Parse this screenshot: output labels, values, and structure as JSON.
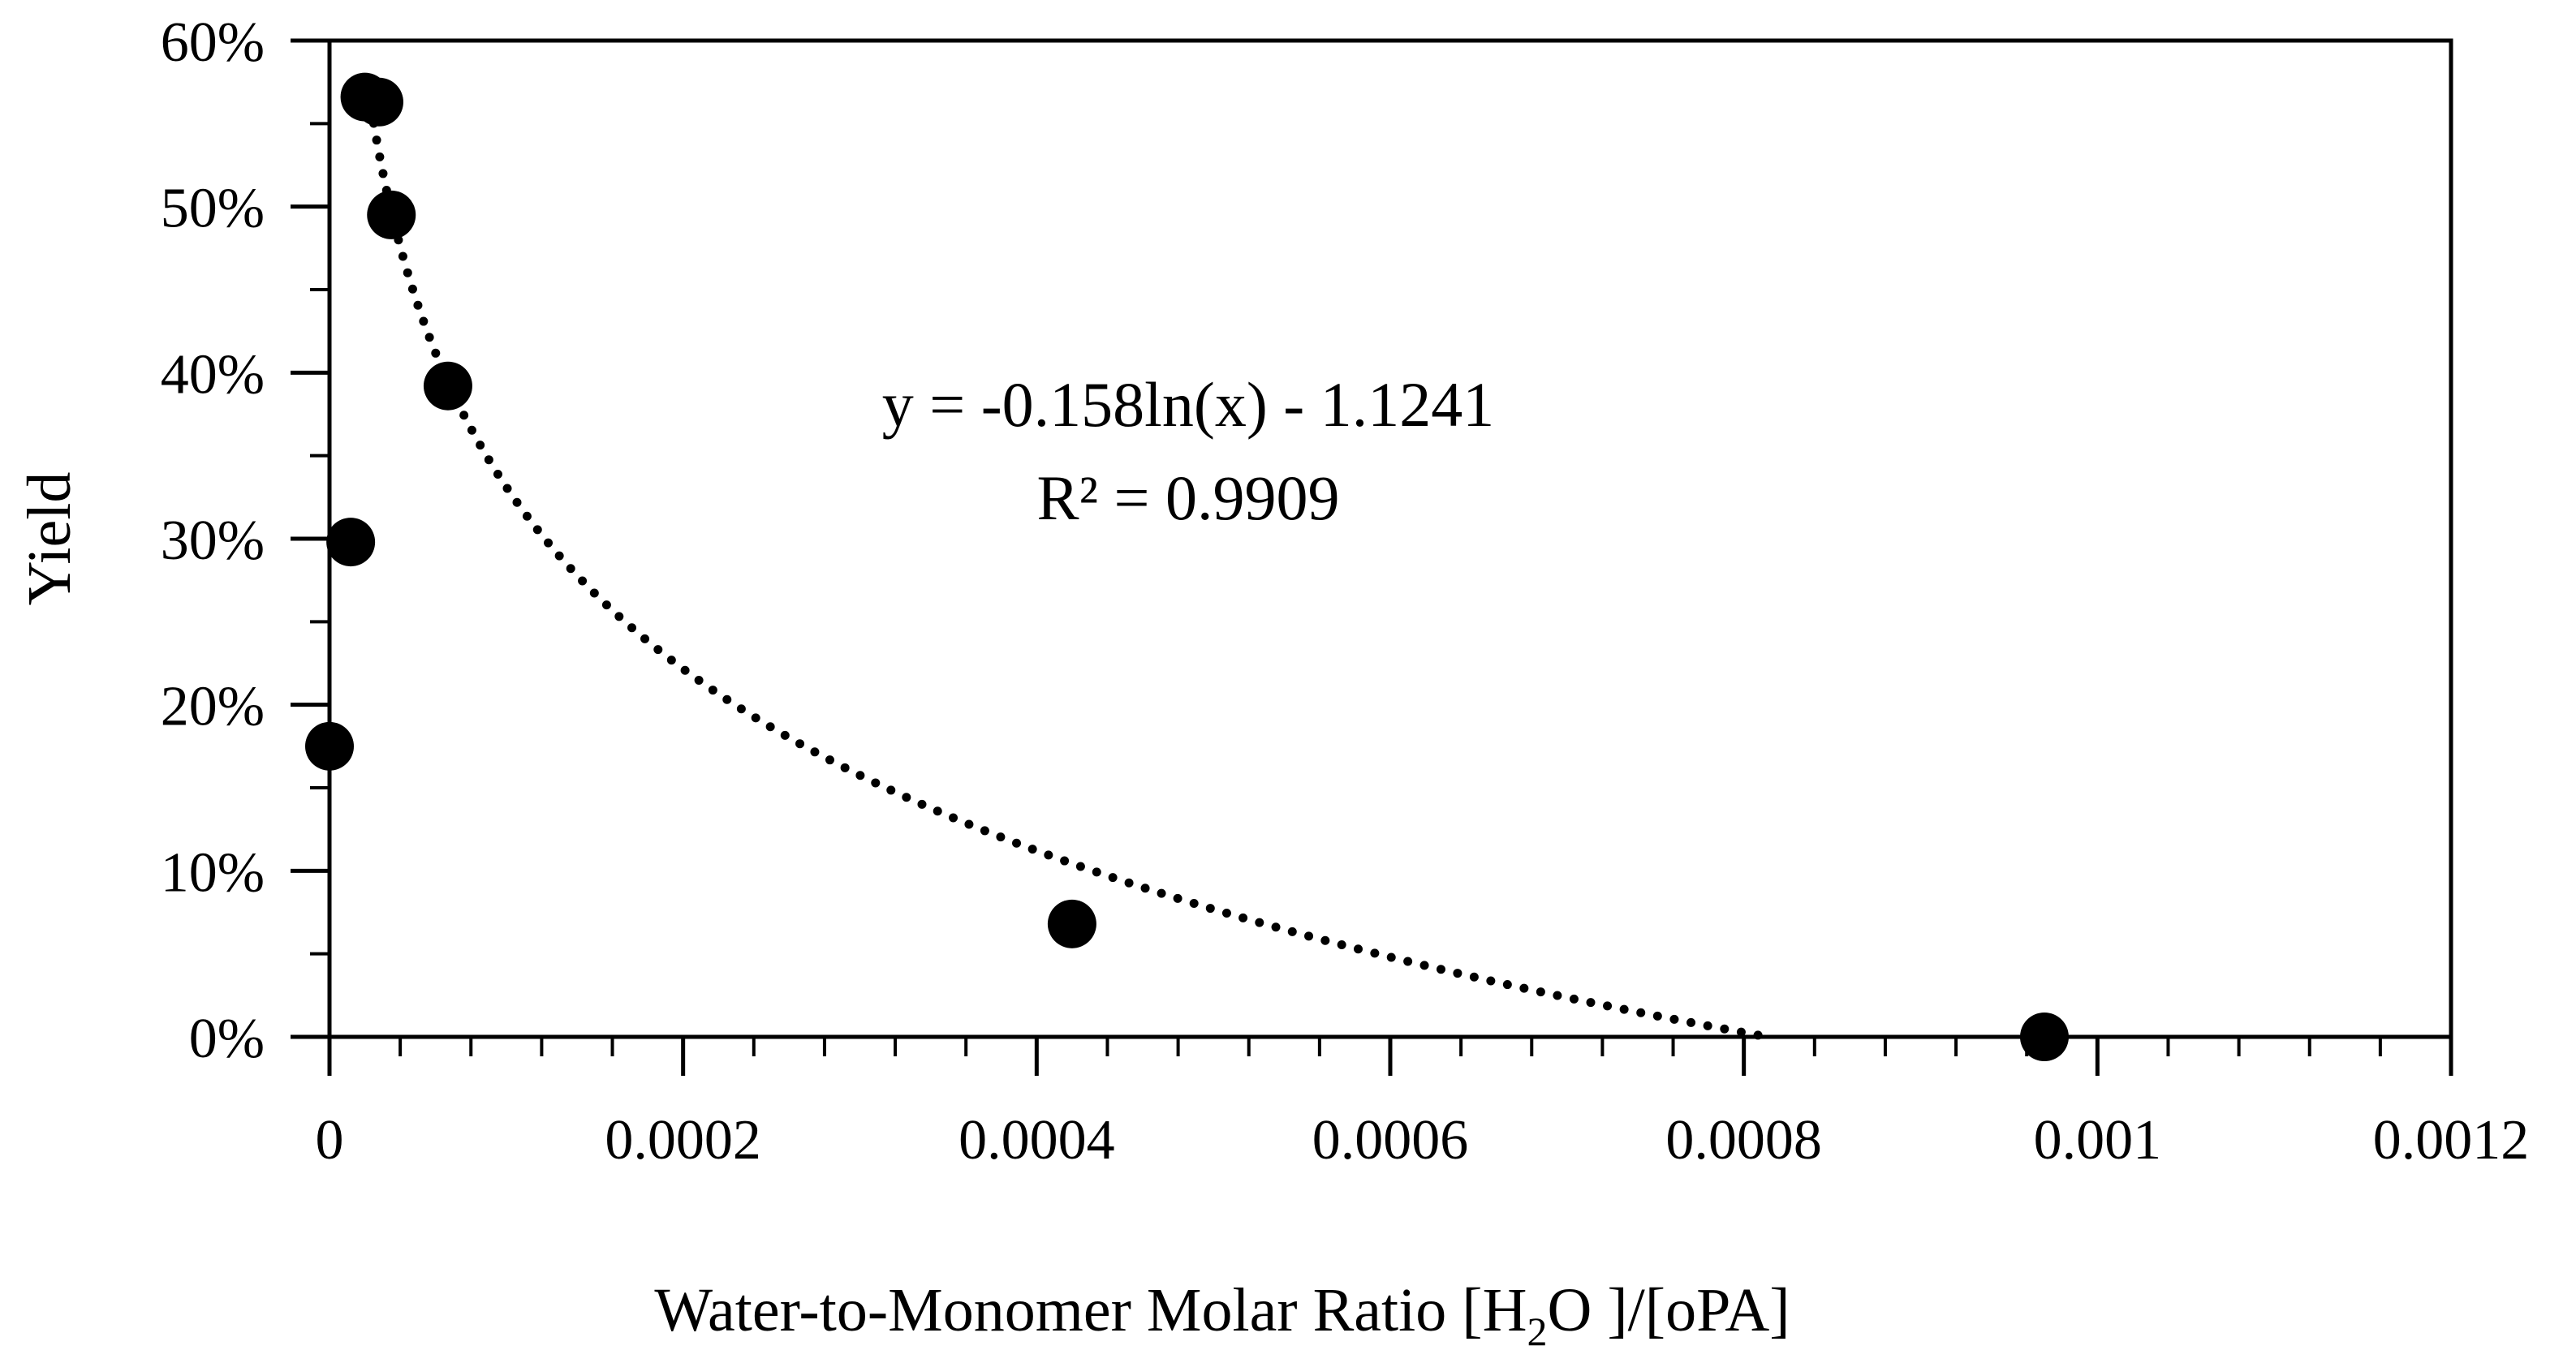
{
  "chart_data": {
    "type": "scatter",
    "title": "",
    "xlabel": "Water-to-Monomer Molar Ratio [H2O ]/[oPA]",
    "xlabel_parts": {
      "prefix": "Water-to-Monomer Molar Ratio [H",
      "subscript": "2",
      "suffix": "O ]/[oPA]"
    },
    "ylabel": "Yield",
    "xlim": [
      0,
      0.0012
    ],
    "ylim": [
      0,
      0.6
    ],
    "x_ticks": [
      0,
      0.0002,
      0.0004,
      0.0006,
      0.0008,
      0.001,
      0.0012
    ],
    "x_tick_labels": [
      "0",
      "0.0002",
      "0.0004",
      "0.0006",
      "0.0008",
      "0.001",
      "0.0012"
    ],
    "x_minor_step": 4e-05,
    "y_ticks": [
      0,
      0.1,
      0.2,
      0.3,
      0.4,
      0.5,
      0.6
    ],
    "y_tick_labels": [
      "0%",
      "10%",
      "20%",
      "30%",
      "40%",
      "50%",
      "60%"
    ],
    "y_minor_step": 0.05,
    "grid": false,
    "series": [
      {
        "name": "Yield",
        "marker": "circle",
        "color": "#000000",
        "x": [
          0.0,
          1.2e-05,
          2e-05,
          2.8e-05,
          3.5e-05,
          6.7e-05,
          0.00042,
          0.00097
        ],
        "y": [
          0.175,
          0.298,
          0.566,
          0.563,
          0.495,
          0.392,
          0.068,
          0.0
        ]
      }
    ],
    "trendline": {
      "type": "logarithmic",
      "style": "dotted",
      "color": "#000000",
      "a": -0.158,
      "b": -1.1241,
      "x_range": [
        2.5e-05,
        0.00081
      ],
      "equation": "y = -0.158ln(x) - 1.1241",
      "r_squared": "R² = 0.9909"
    }
  }
}
